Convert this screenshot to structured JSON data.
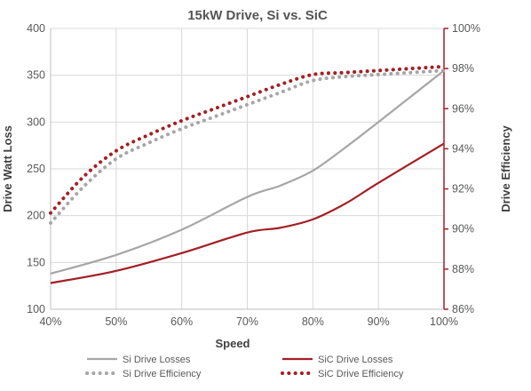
{
  "chart_data": {
    "type": "line",
    "title": "15kW Drive, Si vs. SiC",
    "xlabel": "Speed",
    "ylabel": "Drive Watt Loss",
    "y2label": "Drive Efficiency",
    "categories": [
      "40%",
      "50%",
      "60%",
      "70%",
      "80%",
      "90%",
      "100%"
    ],
    "x": [
      40,
      50,
      60,
      70,
      80,
      90,
      100
    ],
    "ylim": [
      100,
      400
    ],
    "yticks": [
      "100",
      "150",
      "200",
      "250",
      "300",
      "350",
      "400"
    ],
    "y2lim": [
      86,
      100
    ],
    "y2ticks": [
      "86%",
      "88%",
      "90%",
      "92%",
      "94%",
      "96%",
      "98%",
      "100%"
    ],
    "grid": true,
    "legend_position": "bottom",
    "series": [
      {
        "name": "Si Drive Losses",
        "axis": "left",
        "color": "#a6a6a6",
        "style": "solid",
        "x": [
          40,
          50,
          60,
          70,
          75,
          80,
          85,
          90,
          100
        ],
        "values": [
          138,
          158,
          185,
          220,
          232,
          248,
          273,
          300,
          355
        ]
      },
      {
        "name": "SiC Drive Losses",
        "axis": "left",
        "color": "#a31f24",
        "style": "solid",
        "x": [
          40,
          50,
          60,
          70,
          75,
          80,
          85,
          90,
          100
        ],
        "values": [
          128,
          141,
          160,
          182,
          187,
          196,
          213,
          235,
          277
        ]
      },
      {
        "name": "Si Drive Efficiency",
        "axis": "right",
        "color": "#a6a6a6",
        "style": "dotted",
        "x": [
          40,
          45,
          50,
          55,
          60,
          65,
          70,
          75,
          80,
          85,
          90,
          100
        ],
        "values": [
          90.3,
          92.1,
          93.5,
          94.3,
          95.0,
          95.6,
          96.2,
          96.8,
          97.4,
          97.6,
          97.7,
          97.9
        ]
      },
      {
        "name": "SiC Drive Efficiency",
        "axis": "right",
        "color": "#a31f24",
        "style": "dotted",
        "x": [
          40,
          45,
          50,
          55,
          60,
          65,
          70,
          75,
          80,
          85,
          90,
          100
        ],
        "values": [
          90.8,
          92.6,
          93.9,
          94.7,
          95.4,
          96.0,
          96.6,
          97.2,
          97.7,
          97.8,
          97.9,
          98.1
        ]
      }
    ]
  }
}
